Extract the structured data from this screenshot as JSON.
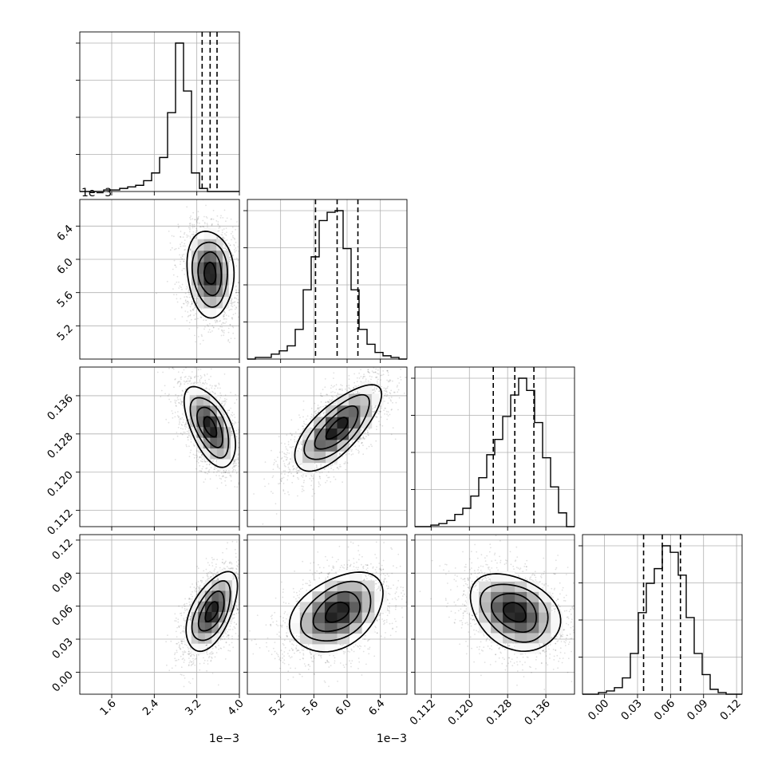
{
  "chart_data": {
    "type": "corner",
    "parameters": [
      {
        "index": 0,
        "range": [
          0.001,
          0.004
        ],
        "offset_text": "1e−3",
        "ticks": [
          0.0016,
          0.0024,
          0.0032,
          0.004
        ],
        "tick_labels": [
          "1.6",
          "2.4",
          "3.2",
          "4.0"
        ],
        "quantiles": [
          0.0033,
          0.00345,
          0.00358
        ],
        "hist_bins": [
          0.001,
          0.004,
          20
        ],
        "hist_counts": [
          0,
          0,
          0,
          1,
          1,
          2,
          3,
          4,
          7,
          12,
          22,
          51,
          96,
          65,
          12,
          2,
          0,
          0,
          0,
          0
        ]
      },
      {
        "index": 1,
        "range": [
          0.0048,
          0.00672
        ],
        "offset_text": "1e−3",
        "ticks": [
          0.0052,
          0.0056,
          0.006,
          0.0064
        ],
        "tick_labels": [
          "5.2",
          "5.6",
          "6.0",
          "6.4"
        ],
        "quantiles": [
          0.00562,
          0.00588,
          0.00613
        ],
        "hist_bins": [
          0.0048,
          0.00672,
          20
        ],
        "hist_counts": [
          0,
          1,
          1,
          3,
          5,
          8,
          18,
          42,
          62,
          84,
          89,
          90,
          67,
          42,
          18,
          9,
          4,
          2,
          1,
          0
        ]
      },
      {
        "index": 2,
        "range": [
          0.1086,
          0.142
        ],
        "offset_text": "",
        "ticks": [
          0.112,
          0.12,
          0.128,
          0.136
        ],
        "tick_labels": [
          "0.112",
          "0.120",
          "0.128",
          "0.136"
        ],
        "quantiles": [
          0.125,
          0.1295,
          0.1335
        ],
        "hist_bins": [
          0.1086,
          0.142,
          20
        ],
        "hist_counts": [
          0,
          0,
          1,
          2,
          4,
          8,
          12,
          20,
          32,
          47,
          57,
          72,
          86,
          97,
          89,
          68,
          45,
          26,
          9,
          0
        ]
      },
      {
        "index": 3,
        "range": [
          -0.02,
          0.125
        ],
        "offset_text": "",
        "ticks": [
          0.0,
          0.03,
          0.06,
          0.09,
          0.12
        ],
        "tick_labels": [
          "0.00",
          "0.03",
          "0.06",
          "0.09",
          "0.12"
        ],
        "quantiles": [
          0.0355,
          0.0525,
          0.069
        ],
        "hist_bins": [
          -0.02,
          0.125,
          20
        ],
        "hist_counts": [
          0,
          0,
          1,
          2,
          4,
          10,
          25,
          50,
          68,
          77,
          91,
          87,
          73,
          47,
          25,
          12,
          3,
          1,
          0,
          0
        ]
      }
    ],
    "pair_panels": [
      {
        "x": 0,
        "y": 1,
        "mean": [
          0.00345,
          0.00583
        ],
        "sd": [
          0.00022,
          0.00026
        ],
        "rho": -0.1
      },
      {
        "x": 0,
        "y": 2,
        "mean": [
          0.00345,
          0.1295
        ],
        "sd": [
          0.00024,
          0.0042
        ],
        "rho": -0.55
      },
      {
        "x": 1,
        "y": 2,
        "mean": [
          0.00588,
          0.1292
        ],
        "sd": [
          0.00026,
          0.0045
        ],
        "rho": 0.72
      },
      {
        "x": 0,
        "y": 3,
        "mean": [
          0.00348,
          0.055
        ],
        "sd": [
          0.00024,
          0.018
        ],
        "rho": 0.55
      },
      {
        "x": 1,
        "y": 3,
        "mean": [
          0.00588,
          0.0545
        ],
        "sd": [
          0.00028,
          0.018
        ],
        "rho": 0.38
      },
      {
        "x": 2,
        "y": 3,
        "mean": [
          0.1295,
          0.0545
        ],
        "sd": [
          0.0047,
          0.0175
        ],
        "rho": -0.3
      }
    ],
    "contour_levels": [
      0.5,
      1.0,
      1.5,
      2.0
    ],
    "grid": true
  }
}
